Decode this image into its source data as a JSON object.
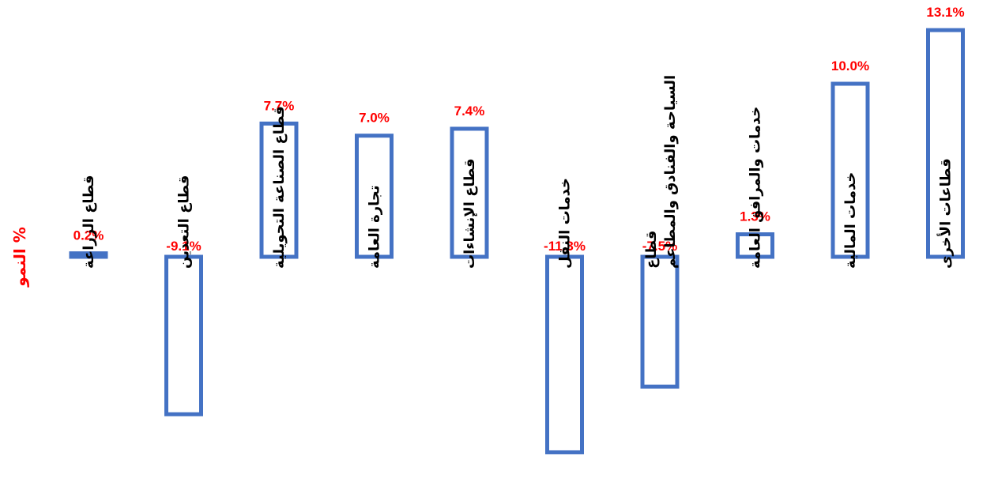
{
  "chart_data": {
    "type": "bar",
    "title": "",
    "xlabel": "",
    "ylabel": "النمو %",
    "categories": [
      "قطاع الزراعة",
      "قطاع التعدين",
      "قطاع الصناعة التحويلية",
      "تجارة العامة",
      "قطاع الإنشاءات",
      "خدمات النقل",
      "قطاع\nالسياحة والفنادق والمطاعم",
      "خدمات والمرافق العامة",
      "خدمات المالية",
      "قطاعات الأخرى"
    ],
    "values": [
      0.2,
      -9.1,
      7.7,
      7.0,
      7.4,
      -11.3,
      -7.5,
      1.3,
      10.0,
      13.1
    ],
    "value_labels": [
      "0.2%",
      "-9.1%",
      "7.7%",
      "7.0%",
      "7.4%",
      "-11.3%",
      "-7.5%",
      "1.3%",
      "10.0%",
      "13.1%"
    ],
    "grid": false,
    "legend": "none",
    "colors": {
      "bar_outline": "#4472C4",
      "bar_fill": "#FFFFFF",
      "value_label": "#FF0000",
      "category_label": "#000000"
    }
  }
}
